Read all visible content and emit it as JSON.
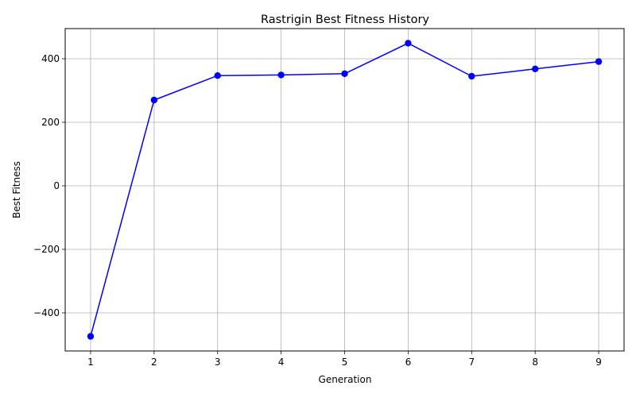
{
  "chart_data": {
    "type": "line",
    "title": "Rastrigin Best Fitness History",
    "xlabel": "Generation",
    "ylabel": "Best Fitness",
    "x": [
      1,
      2,
      3,
      4,
      5,
      6,
      7,
      8,
      9
    ],
    "series": [
      {
        "values": [
          -474,
          270,
          347,
          349,
          353,
          449,
          345,
          368,
          391
        ],
        "color": "#0000ff",
        "marker": "circle"
      }
    ],
    "xlim": [
      0.6,
      9.4
    ],
    "ylim": [
      -520,
      495
    ],
    "xticks": [
      1,
      2,
      3,
      4,
      5,
      6,
      7,
      8,
      9
    ],
    "xtick_labels": [
      "1",
      "2",
      "3",
      "4",
      "5",
      "6",
      "7",
      "8",
      "9"
    ],
    "yticks": [
      -400,
      -200,
      0,
      200,
      400
    ],
    "ytick_labels": [
      "−400",
      "−200",
      "0",
      "200",
      "400"
    ],
    "grid": true
  }
}
